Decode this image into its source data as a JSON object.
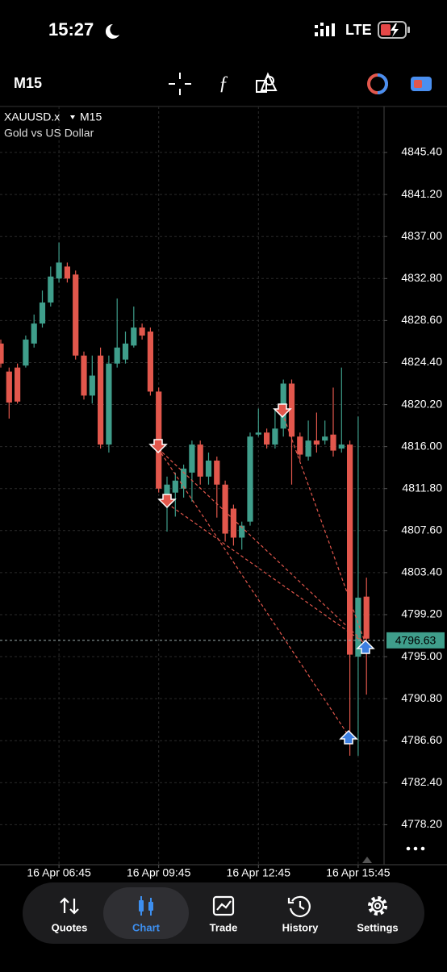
{
  "status_bar": {
    "time": "15:27",
    "network": "LTE"
  },
  "toolbar": {
    "timeframe": "M15"
  },
  "chart_data": {
    "type": "candlestick",
    "symbol": "XAUUSD.x",
    "timeframe": "M15",
    "description": "Gold vs US Dollar",
    "categories": [
      null,
      null,
      null,
      null,
      null,
      null,
      null,
      "16 Apr 06:45",
      null,
      null,
      null,
      null,
      null,
      null,
      null,
      null,
      null,
      null,
      null,
      "16 Apr 09:45",
      null,
      null,
      null,
      null,
      null,
      null,
      null,
      null,
      null,
      null,
      null,
      "16 Apr 12:45",
      null,
      null,
      null,
      null,
      null,
      null,
      null,
      null,
      null,
      null,
      null,
      "16 Apr 15:45",
      null
    ],
    "open": [
      4826.3,
      4823.5,
      4823.9,
      4824.1,
      4826.3,
      4828.3,
      4830.4,
      4832.8,
      4834.0,
      4833.2,
      4825.1,
      4821.1,
      4825.1,
      4816.2,
      4824.3,
      4824.7,
      4826.1,
      4827.9,
      4827.5,
      4821.5,
      4811.2,
      4811.4,
      4811.8,
      4813.4,
      4816.2,
      4813.0,
      4814.6,
      4812.2,
      4809.8,
      4806.9,
      4808.5,
      4817.2,
      4817.4,
      4816.2,
      4817.8,
      4822.3,
      4817.0,
      4815.0,
      4816.6,
      4816.6,
      4817.2,
      4815.8,
      4816.2,
      4795.0,
      4801.0
    ],
    "high": [
      4826.7,
      4823.9,
      4824.3,
      4827.1,
      4829.2,
      4831.6,
      4834.0,
      4836.4,
      4834.4,
      4833.6,
      4825.5,
      4825.1,
      4825.9,
      4825.1,
      4830.8,
      4827.5,
      4830.0,
      4828.3,
      4827.9,
      4821.9,
      4813.0,
      4813.4,
      4814.2,
      4816.6,
      4816.6,
      4815.4,
      4815.0,
      4812.6,
      4810.2,
      4808.5,
      4817.4,
      4819.8,
      4817.8,
      4819.8,
      4822.7,
      4822.7,
      4817.4,
      4818.6,
      4819.4,
      4818.6,
      4821.9,
      4823.9,
      4816.6,
      4819.0,
      4802.9
    ],
    "low": [
      4823.9,
      4818.8,
      4820.3,
      4823.9,
      4825.9,
      4827.9,
      4830.0,
      4832.4,
      4832.4,
      4824.7,
      4820.7,
      4820.3,
      4815.8,
      4815.4,
      4823.9,
      4824.3,
      4825.9,
      4826.7,
      4821.1,
      4811.4,
      4807.5,
      4809.0,
      4810.9,
      4810.5,
      4812.2,
      4812.2,
      4808.9,
      4806.5,
      4806.1,
      4805.7,
      4808.1,
      4817.0,
      4815.8,
      4815.8,
      4817.0,
      4812.2,
      4814.6,
      4814.6,
      4815.4,
      4816.2,
      4815.0,
      4815.4,
      4785.1,
      4785.1,
      4791.2
    ],
    "close": [
      4824.3,
      4820.4,
      4820.5,
      4826.7,
      4828.3,
      4830.4,
      4833.0,
      4834.4,
      4832.8,
      4825.1,
      4821.1,
      4823.1,
      4816.2,
      4824.3,
      4825.9,
      4826.3,
      4827.9,
      4827.1,
      4821.5,
      4811.8,
      4812.2,
      4812.6,
      4813.8,
      4816.2,
      4813.0,
      4814.6,
      4812.2,
      4807.3,
      4806.9,
      4808.1,
      4817.0,
      4817.4,
      4816.2,
      4817.8,
      4822.3,
      4817.0,
      4815.2,
      4816.6,
      4816.2,
      4817.0,
      4815.6,
      4816.2,
      4795.2,
      4800.9,
      4796.8
    ],
    "up_color": "#3f9e8b",
    "down_color": "#e2574c",
    "current_price": 4796.63,
    "ylim": [
      4774.2,
      4850.0
    ],
    "yticks": [
      {
        "value": 4845.4,
        "label": "4845.40"
      },
      {
        "value": 4841.2,
        "label": "4841.20"
      },
      {
        "value": 4837.0,
        "label": "4837.00"
      },
      {
        "value": 4832.8,
        "label": "4832.80"
      },
      {
        "value": 4828.6,
        "label": "4828.60"
      },
      {
        "value": 4824.4,
        "label": "4824.40"
      },
      {
        "value": 4820.2,
        "label": "4820.20"
      },
      {
        "value": 4816.0,
        "label": "4816.00"
      },
      {
        "value": 4811.8,
        "label": "4811.80"
      },
      {
        "value": 4807.6,
        "label": "4807.60"
      },
      {
        "value": 4803.4,
        "label": "4803.40"
      },
      {
        "value": 4799.2,
        "label": "4799.20"
      },
      {
        "value": 4795.0,
        "label": "4795.00"
      },
      {
        "value": 4790.8,
        "label": "4790.80"
      },
      {
        "value": 4786.6,
        "label": "4786.60"
      },
      {
        "value": 4782.4,
        "label": "4782.40"
      },
      {
        "value": 4778.2,
        "label": "4778.20"
      }
    ],
    "grid": true
  },
  "nav": [
    "Quotes",
    "Chart",
    "Trade",
    "History",
    "Settings"
  ]
}
